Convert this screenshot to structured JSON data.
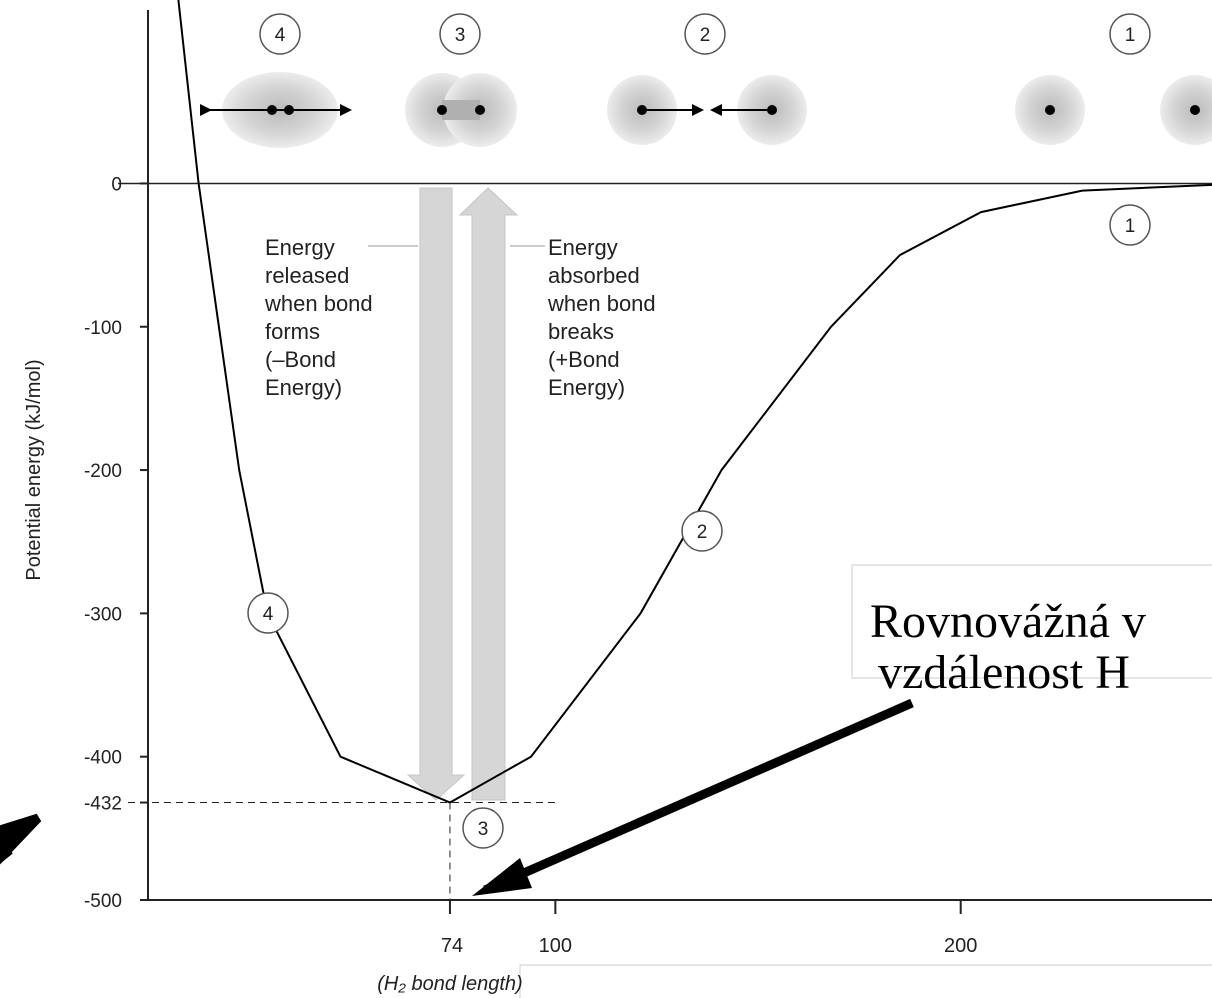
{
  "chart_data": {
    "type": "line",
    "ylabel": "Potential energy (kJ/mol)",
    "x": [
      7,
      12,
      17,
      22,
      29,
      47,
      74,
      94,
      121,
      141,
      168,
      185,
      205,
      230,
      262
    ],
    "values": [
      128,
      0,
      -100,
      -200,
      -300,
      -400,
      -432,
      -400,
      -300,
      -200,
      -100,
      -50,
      -20,
      -5,
      -1
    ],
    "color": "#000000",
    "xlim": [
      0,
      262
    ],
    "ylim": [
      -500,
      128
    ],
    "xticks": [
      74,
      100,
      200
    ],
    "yticks": [
      0,
      -100,
      -200,
      -300,
      -400,
      -432,
      -500
    ],
    "x_note": "(H₂ bond length)",
    "released_text": [
      "Energy",
      "released",
      "when bond",
      "forms",
      "(–Bond",
      "Energy)"
    ],
    "absorbed_text": [
      "Energy",
      "absorbed",
      "when bond",
      "breaks",
      "(+Bond",
      "Energy)"
    ],
    "top_markers": [
      "4",
      "3",
      "2",
      "1"
    ],
    "curve_markers": [
      "1",
      "2",
      "3",
      "4"
    ],
    "callout": [
      "Rovnovážná v",
      "vzdálenost H"
    ]
  }
}
